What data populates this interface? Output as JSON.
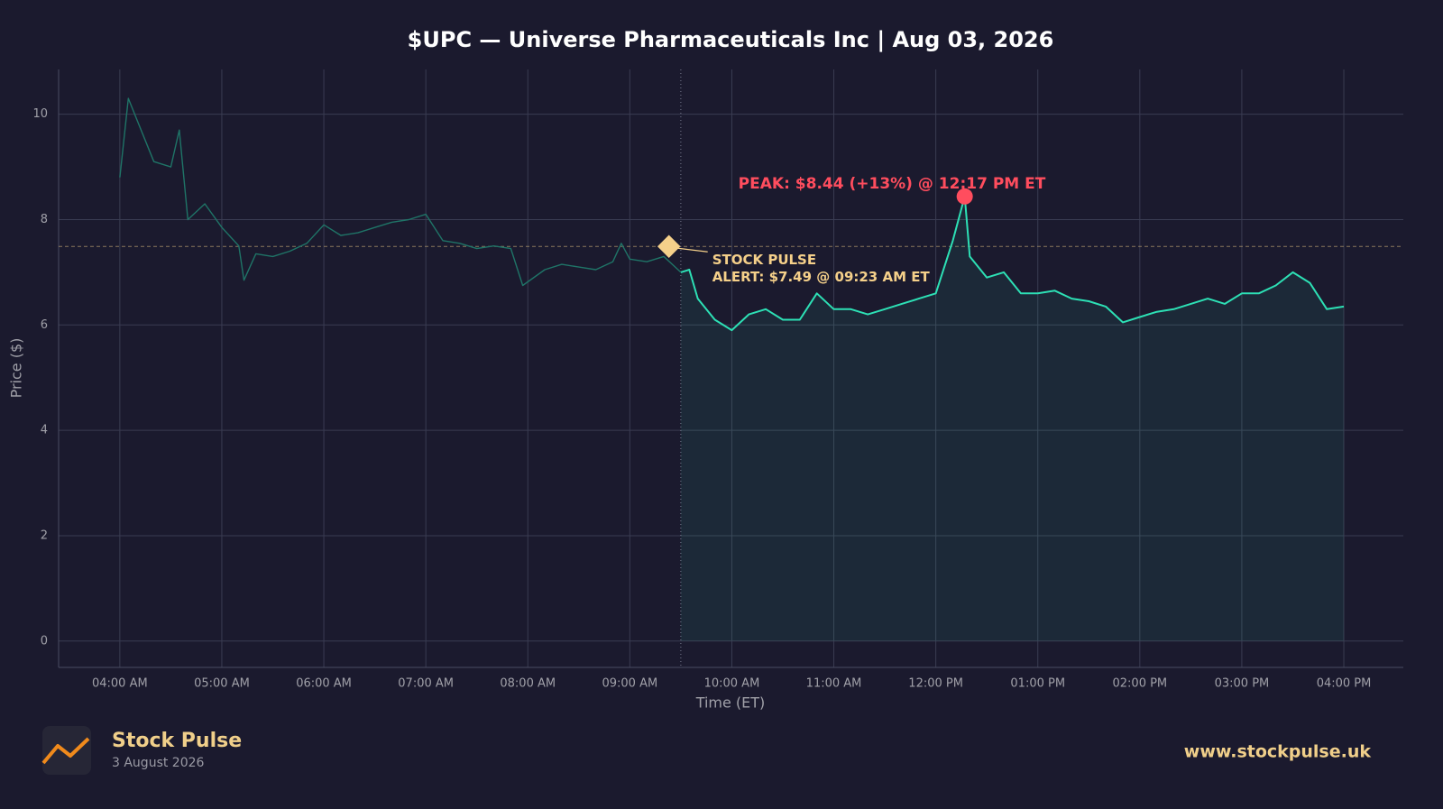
{
  "chart_data": {
    "type": "line",
    "title": "$UPC — Universe Pharmaceuticals Inc  |  Aug 03, 2026",
    "x_label": "Time (ET)",
    "y_label": "Price ($)",
    "xlim": [
      "03:24 AM",
      "04:35 PM"
    ],
    "xticks": [
      "04:00 AM",
      "05:00 AM",
      "06:00 AM",
      "07:00 AM",
      "08:00 AM",
      "09:00 AM",
      "10:00 AM",
      "11:00 AM",
      "12:00 PM",
      "01:00 PM",
      "02:00 PM",
      "03:00 PM",
      "04:00 PM"
    ],
    "ylim": [
      -0.5,
      10.85
    ],
    "yticks": [
      0,
      2,
      4,
      6,
      8,
      10
    ],
    "grid": true,
    "market_open": "09:30 AM",
    "series": [
      {
        "color": "#1f7467",
        "fill": false,
        "x": [
          "04:00 AM",
          "04:05 AM",
          "04:10 AM",
          "04:20 AM",
          "04:30 AM",
          "04:35 AM",
          "04:40 AM",
          "04:50 AM",
          "05:00 AM",
          "05:10 AM",
          "05:13 AM",
          "05:20 AM",
          "05:30 AM",
          "05:40 AM",
          "05:50 AM",
          "06:00 AM",
          "06:10 AM",
          "06:20 AM",
          "06:30 AM",
          "06:40 AM",
          "06:50 AM",
          "07:00 AM",
          "07:10 AM",
          "07:20 AM",
          "07:30 AM",
          "07:40 AM",
          "07:50 AM",
          "07:57 AM",
          "08:10 AM",
          "08:20 AM",
          "08:30 AM",
          "08:40 AM",
          "08:50 AM",
          "08:55 AM",
          "09:00 AM",
          "09:10 AM",
          "09:20 AM",
          "09:30 AM"
        ],
        "values": [
          8.8,
          10.3,
          9.9,
          9.1,
          9.0,
          9.7,
          8.0,
          8.3,
          7.85,
          7.5,
          6.85,
          7.35,
          7.3,
          7.4,
          7.55,
          7.9,
          7.7,
          7.75,
          7.85,
          7.95,
          8.0,
          8.1,
          7.6,
          7.55,
          7.45,
          7.5,
          7.45,
          6.75,
          7.05,
          7.15,
          7.1,
          7.05,
          7.2,
          7.55,
          7.25,
          7.2,
          7.3,
          7.0
        ]
      },
      {
        "color": "#2de0b5",
        "fill": true,
        "x": [
          "09:30 AM",
          "09:35 AM",
          "09:40 AM",
          "09:50 AM",
          "10:00 AM",
          "10:10 AM",
          "10:20 AM",
          "10:30 AM",
          "10:40 AM",
          "10:50 AM",
          "11:00 AM",
          "11:10 AM",
          "11:20 AM",
          "11:30 AM",
          "11:40 AM",
          "11:50 AM",
          "12:00 PM",
          "12:10 PM",
          "12:17 PM",
          "12:20 PM",
          "12:30 PM",
          "12:40 PM",
          "12:50 PM",
          "01:00 PM",
          "01:10 PM",
          "01:20 PM",
          "01:30 PM",
          "01:40 PM",
          "01:50 PM",
          "02:00 PM",
          "02:10 PM",
          "02:20 PM",
          "02:30 PM",
          "02:40 PM",
          "02:50 PM",
          "03:00 PM",
          "03:10 PM",
          "03:20 PM",
          "03:30 PM",
          "03:40 PM",
          "03:50 PM",
          "04:00 PM"
        ],
        "values": [
          7.0,
          7.05,
          6.5,
          6.1,
          5.9,
          6.2,
          6.3,
          6.1,
          6.1,
          6.6,
          6.3,
          6.3,
          6.2,
          6.3,
          6.4,
          6.5,
          6.6,
          7.6,
          8.44,
          7.3,
          6.9,
          7.0,
          6.6,
          6.6,
          6.65,
          6.5,
          6.45,
          6.35,
          6.05,
          6.15,
          6.25,
          6.3,
          6.4,
          6.5,
          6.4,
          6.6,
          6.6,
          6.75,
          7.0,
          6.8,
          6.3,
          6.35
        ]
      }
    ],
    "peak": {
      "x": "12:17 PM",
      "value": 8.44,
      "color": "#ff4d5e",
      "label": "PEAK: $8.44 (+13%) @ 12:17 PM ET"
    },
    "alert": {
      "x": "09:23 AM",
      "value": 7.49,
      "color": "#f5d08a",
      "label": [
        "STOCK PULSE",
        "ALERT: $7.49 @ 09:23 AM ET"
      ]
    }
  },
  "footer": {
    "brand": "Stock Pulse",
    "date": "3 August 2026",
    "url": "www.stockpulse.uk"
  }
}
